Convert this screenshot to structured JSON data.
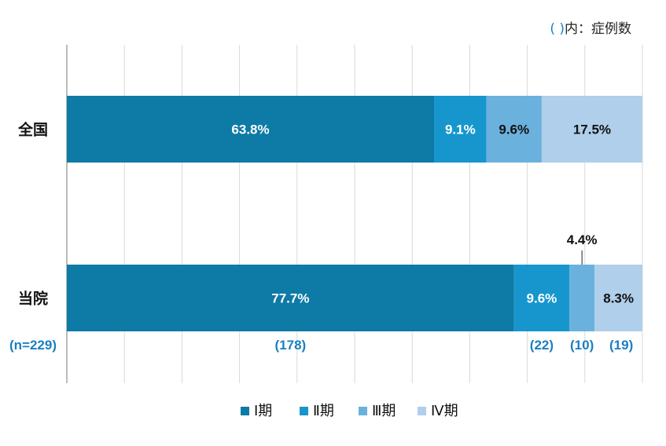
{
  "note": {
    "paren": "( )",
    "text": "内：症例数"
  },
  "chart_data": {
    "type": "bar",
    "orientation": "horizontal",
    "stacked": true,
    "percent": true,
    "categories": [
      "全国",
      "当院"
    ],
    "series": [
      {
        "name": "Ⅰ期",
        "color": "#0e7aa6",
        "values": [
          63.8,
          77.7
        ],
        "labels": [
          "63.8%",
          "77.7%"
        ]
      },
      {
        "name": "Ⅱ期",
        "color": "#1696cd",
        "values": [
          9.1,
          9.6
        ],
        "labels": [
          "9.1%",
          "9.6%"
        ]
      },
      {
        "name": "Ⅲ期",
        "color": "#6bb1dd",
        "values": [
          9.6,
          4.4
        ],
        "labels": [
          "9.6%",
          "4.4%"
        ]
      },
      {
        "name": "Ⅳ期",
        "color": "#afcfea",
        "values": [
          17.5,
          8.3
        ],
        "labels": [
          "17.5%",
          "8.3%"
        ]
      }
    ],
    "counts": {
      "total": "(n=229)",
      "values": [
        "(178)",
        "(22)",
        "(10)",
        "(19)"
      ]
    },
    "xlim": [
      0,
      100
    ],
    "grid": true,
    "legend_position": "bottom"
  }
}
